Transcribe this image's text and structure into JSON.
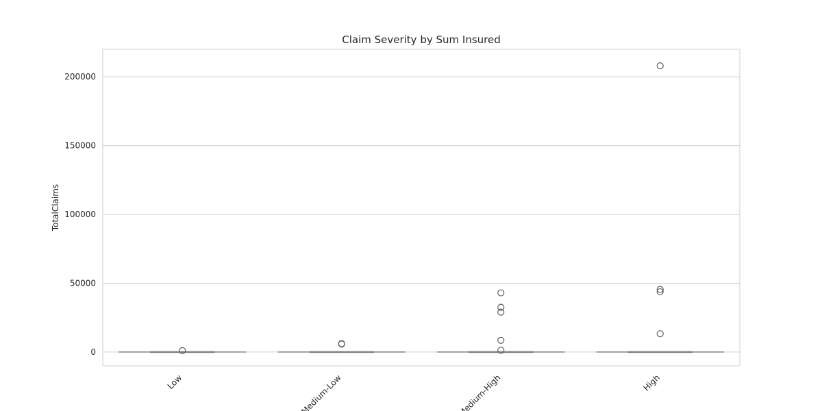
{
  "chart_data": {
    "type": "box",
    "title": "Claim Severity by Sum Insured",
    "xlabel": "",
    "ylabel": "TotalClaims",
    "categories": [
      "Low",
      "Medium-Low",
      "Medium-High",
      "High"
    ],
    "ylim": [
      -10000,
      220000
    ],
    "yticks": [
      0,
      50000,
      100000,
      150000,
      200000
    ],
    "grid": true,
    "boxes": [
      {
        "category": "Low",
        "min": 0,
        "q1": 0,
        "median": 0,
        "q3": 0,
        "max": 0,
        "outliers": [
          1000
        ]
      },
      {
        "category": "Medium-Low",
        "min": 0,
        "q1": 0,
        "median": 0,
        "q3": 0,
        "max": 0,
        "outliers": [
          5800,
          6100
        ]
      },
      {
        "category": "Medium-High",
        "min": 0,
        "q1": 0,
        "median": 0,
        "q3": 0,
        "max": 0,
        "outliers": [
          1300,
          8500,
          29000,
          32500,
          43000
        ]
      },
      {
        "category": "High",
        "min": 0,
        "q1": 0,
        "median": 0,
        "q3": 0,
        "max": 0,
        "outliers": [
          13300,
          43800,
          45500,
          208000
        ]
      }
    ]
  },
  "colors": {
    "grid": "#cccccc",
    "box_line": "#7f7f7f",
    "text": "#262626",
    "frame": "#cccccc"
  }
}
